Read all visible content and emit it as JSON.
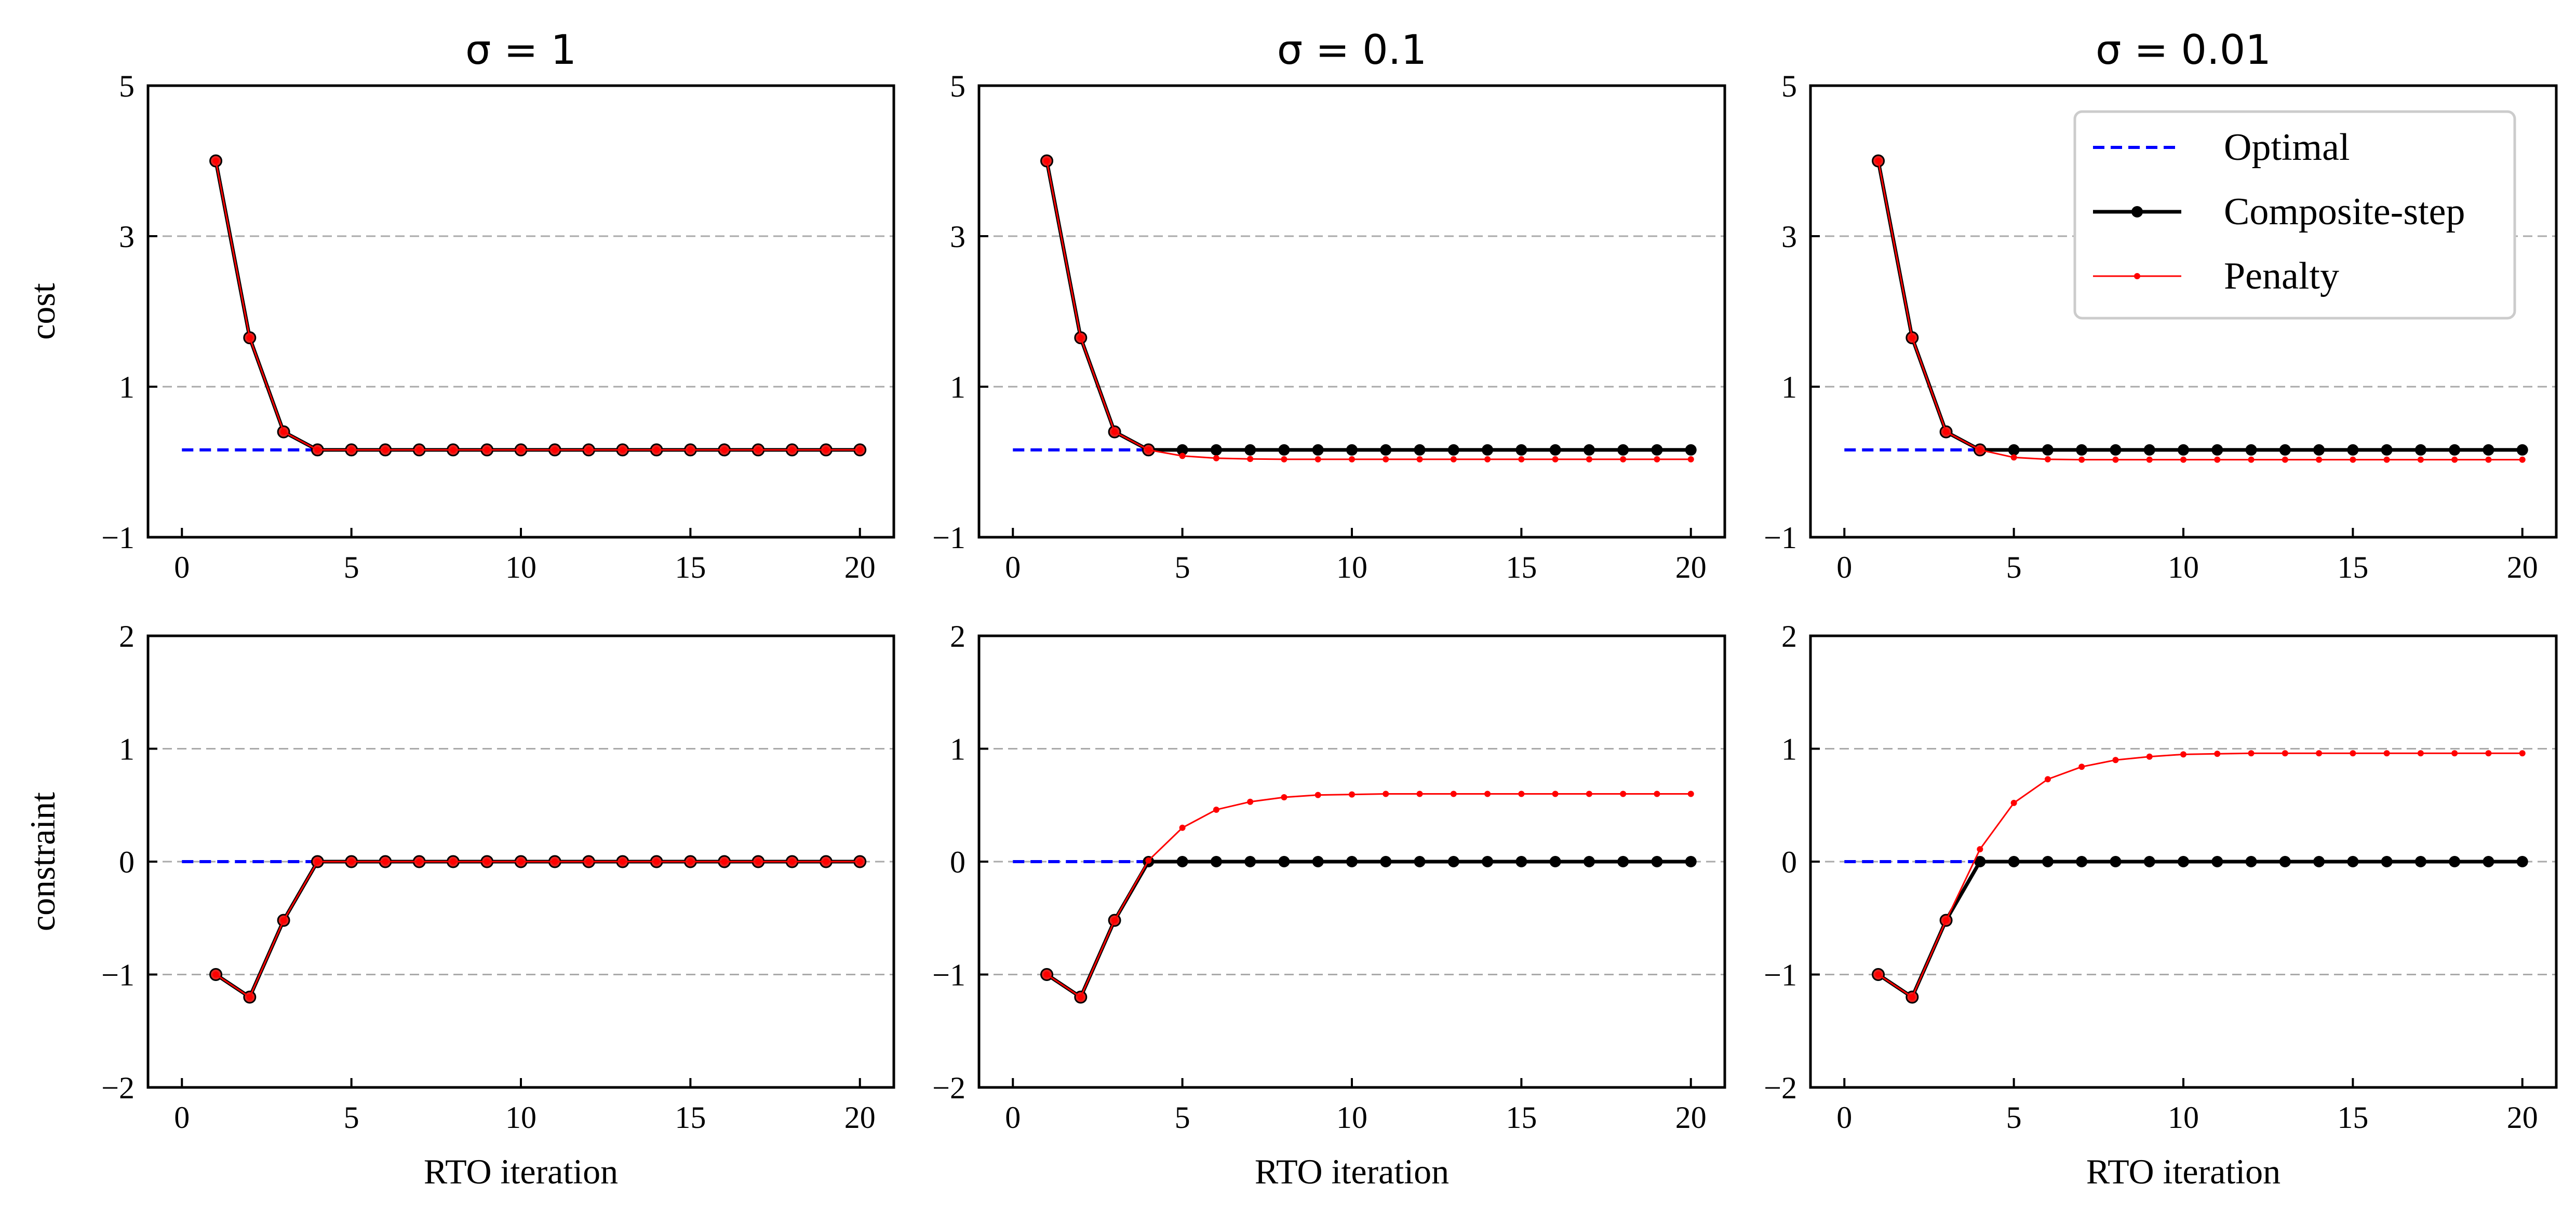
{
  "chart_data": [
    {
      "type": "line",
      "row": 0,
      "col": 0,
      "title": "σ = 1",
      "xlabel": "",
      "ylabel": "cost",
      "xlim": [
        -1,
        21
      ],
      "ylim": [
        -1,
        5
      ],
      "xticks": [
        "0",
        "5",
        "10",
        "15",
        "20"
      ],
      "yticks": [
        "−1",
        "1",
        "3",
        "5"
      ],
      "grid_y": [
        1,
        3
      ],
      "x": [
        1,
        2,
        3,
        4,
        5,
        6,
        7,
        8,
        9,
        10,
        11,
        12,
        13,
        14,
        15,
        16,
        17,
        18,
        19,
        20
      ],
      "optimal": {
        "x": [
          0,
          4
        ],
        "y": [
          0.16,
          0.16
        ]
      },
      "series": [
        {
          "name": "Composite-step",
          "values": [
            4.0,
            1.65,
            0.4,
            0.16,
            0.16,
            0.16,
            0.16,
            0.16,
            0.16,
            0.16,
            0.16,
            0.16,
            0.16,
            0.16,
            0.16,
            0.16,
            0.16,
            0.16,
            0.16,
            0.16
          ]
        },
        {
          "name": "Penalty",
          "values": [
            4.0,
            1.65,
            0.4,
            0.16,
            0.16,
            0.16,
            0.16,
            0.16,
            0.16,
            0.16,
            0.16,
            0.16,
            0.16,
            0.16,
            0.16,
            0.16,
            0.16,
            0.16,
            0.16,
            0.16
          ]
        }
      ]
    },
    {
      "type": "line",
      "row": 0,
      "col": 1,
      "title": "σ = 0.1",
      "xlabel": "",
      "ylabel": "",
      "xlim": [
        -1,
        21
      ],
      "ylim": [
        -1,
        5
      ],
      "xticks": [
        "0",
        "5",
        "10",
        "15",
        "20"
      ],
      "yticks": [
        "−1",
        "1",
        "3",
        "5"
      ],
      "grid_y": [
        1,
        3
      ],
      "x": [
        1,
        2,
        3,
        4,
        5,
        6,
        7,
        8,
        9,
        10,
        11,
        12,
        13,
        14,
        15,
        16,
        17,
        18,
        19,
        20
      ],
      "optimal": {
        "x": [
          0,
          4
        ],
        "y": [
          0.16,
          0.16
        ]
      },
      "series": [
        {
          "name": "Composite-step",
          "values": [
            4.0,
            1.65,
            0.4,
            0.16,
            0.16,
            0.16,
            0.16,
            0.16,
            0.16,
            0.16,
            0.16,
            0.16,
            0.16,
            0.16,
            0.16,
            0.16,
            0.16,
            0.16,
            0.16,
            0.16
          ]
        },
        {
          "name": "Penalty",
          "values": [
            4.0,
            1.65,
            0.4,
            0.16,
            0.08,
            0.05,
            0.04,
            0.035,
            0.035,
            0.035,
            0.035,
            0.035,
            0.035,
            0.035,
            0.035,
            0.035,
            0.035,
            0.035,
            0.035,
            0.035
          ]
        }
      ]
    },
    {
      "type": "line",
      "row": 0,
      "col": 2,
      "title": "σ = 0.01",
      "xlabel": "",
      "ylabel": "",
      "xlim": [
        -1,
        21
      ],
      "ylim": [
        -1,
        5
      ],
      "xticks": [
        "0",
        "5",
        "10",
        "15",
        "20"
      ],
      "yticks": [
        "−1",
        "1",
        "3",
        "5"
      ],
      "grid_y": [
        1,
        3
      ],
      "x": [
        1,
        2,
        3,
        4,
        5,
        6,
        7,
        8,
        9,
        10,
        11,
        12,
        13,
        14,
        15,
        16,
        17,
        18,
        19,
        20
      ],
      "optimal": {
        "x": [
          0,
          4
        ],
        "y": [
          0.16,
          0.16
        ]
      },
      "series": [
        {
          "name": "Composite-step",
          "values": [
            4.0,
            1.65,
            0.4,
            0.16,
            0.16,
            0.16,
            0.16,
            0.16,
            0.16,
            0.16,
            0.16,
            0.16,
            0.16,
            0.16,
            0.16,
            0.16,
            0.16,
            0.16,
            0.16,
            0.16
          ]
        },
        {
          "name": "Penalty",
          "values": [
            4.0,
            1.65,
            0.4,
            0.16,
            0.06,
            0.035,
            0.03,
            0.03,
            0.03,
            0.03,
            0.03,
            0.03,
            0.03,
            0.03,
            0.03,
            0.03,
            0.03,
            0.03,
            0.03,
            0.03
          ]
        }
      ]
    },
    {
      "type": "line",
      "row": 1,
      "col": 0,
      "title": "",
      "xlabel": "RTO iteration",
      "ylabel": "constraint",
      "xlim": [
        -1,
        21
      ],
      "ylim": [
        -2,
        2
      ],
      "xticks": [
        "0",
        "5",
        "10",
        "15",
        "20"
      ],
      "yticks": [
        "−2",
        "−1",
        "0",
        "1",
        "2"
      ],
      "grid_y": [
        -1,
        0,
        1
      ],
      "x": [
        1,
        2,
        3,
        4,
        5,
        6,
        7,
        8,
        9,
        10,
        11,
        12,
        13,
        14,
        15,
        16,
        17,
        18,
        19,
        20
      ],
      "optimal": {
        "x": [
          0,
          4
        ],
        "y": [
          0,
          0
        ]
      },
      "series": [
        {
          "name": "Composite-step",
          "values": [
            -1.0,
            -1.2,
            -0.52,
            0,
            0,
            0,
            0,
            0,
            0,
            0,
            0,
            0,
            0,
            0,
            0,
            0,
            0,
            0,
            0,
            0
          ]
        },
        {
          "name": "Penalty",
          "values": [
            -1.0,
            -1.2,
            -0.52,
            0,
            0,
            0,
            0,
            0,
            0,
            0,
            0,
            0,
            0,
            0,
            0,
            0,
            0,
            0,
            0,
            0
          ]
        }
      ]
    },
    {
      "type": "line",
      "row": 1,
      "col": 1,
      "title": "",
      "xlabel": "RTO iteration",
      "ylabel": "",
      "xlim": [
        -1,
        21
      ],
      "ylim": [
        -2,
        2
      ],
      "xticks": [
        "0",
        "5",
        "10",
        "15",
        "20"
      ],
      "yticks": [
        "−2",
        "−1",
        "0",
        "1",
        "2"
      ],
      "grid_y": [
        -1,
        0,
        1
      ],
      "x": [
        1,
        2,
        3,
        4,
        5,
        6,
        7,
        8,
        9,
        10,
        11,
        12,
        13,
        14,
        15,
        16,
        17,
        18,
        19,
        20
      ],
      "optimal": {
        "x": [
          0,
          4
        ],
        "y": [
          0,
          0
        ]
      },
      "series": [
        {
          "name": "Composite-step",
          "values": [
            -1.0,
            -1.2,
            -0.52,
            0,
            0,
            0,
            0,
            0,
            0,
            0,
            0,
            0,
            0,
            0,
            0,
            0,
            0,
            0,
            0,
            0
          ]
        },
        {
          "name": "Penalty",
          "values": [
            -1.0,
            -1.2,
            -0.52,
            0.01,
            0.3,
            0.46,
            0.53,
            0.57,
            0.59,
            0.595,
            0.6,
            0.6,
            0.6,
            0.6,
            0.6,
            0.6,
            0.6,
            0.6,
            0.6,
            0.6
          ]
        }
      ]
    },
    {
      "type": "line",
      "row": 1,
      "col": 2,
      "title": "",
      "xlabel": "RTO iteration",
      "ylabel": "",
      "xlim": [
        -1,
        21
      ],
      "ylim": [
        -2,
        2
      ],
      "xticks": [
        "0",
        "5",
        "10",
        "15",
        "20"
      ],
      "yticks": [
        "−2",
        "−1",
        "0",
        "1",
        "2"
      ],
      "grid_y": [
        -1,
        0,
        1
      ],
      "x": [
        1,
        2,
        3,
        4,
        5,
        6,
        7,
        8,
        9,
        10,
        11,
        12,
        13,
        14,
        15,
        16,
        17,
        18,
        19,
        20
      ],
      "optimal": {
        "x": [
          0,
          4
        ],
        "y": [
          0,
          0
        ]
      },
      "series": [
        {
          "name": "Composite-step",
          "values": [
            -1.0,
            -1.2,
            -0.52,
            0,
            0,
            0,
            0,
            0,
            0,
            0,
            0,
            0,
            0,
            0,
            0,
            0,
            0,
            0,
            0,
            0
          ]
        },
        {
          "name": "Penalty",
          "values": [
            -1.0,
            -1.2,
            -0.52,
            0.11,
            0.52,
            0.73,
            0.84,
            0.9,
            0.93,
            0.95,
            0.955,
            0.96,
            0.96,
            0.96,
            0.96,
            0.96,
            0.96,
            0.96,
            0.96,
            0.96
          ]
        }
      ]
    }
  ],
  "legend": {
    "placement": "upper-right of top-right panel",
    "entries": [
      {
        "label": "Optimal",
        "color": "#0000ff",
        "style": "dashed"
      },
      {
        "label": "Composite-step",
        "color": "#000000",
        "style": "solid-marker"
      },
      {
        "label": "Penalty",
        "color": "#ff0000",
        "style": "thin-marker"
      }
    ]
  },
  "colors": {
    "optimal": "#0000ff",
    "composite": "#000000",
    "penalty": "#ff0000",
    "grid": "#aaaaaa"
  }
}
